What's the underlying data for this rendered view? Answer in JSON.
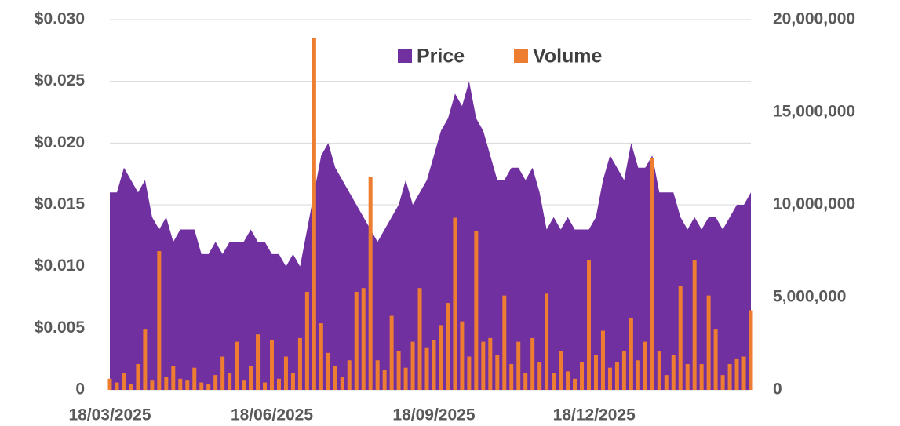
{
  "chart_data": {
    "type": "combo",
    "x": [
      "18/03/2025",
      "22/03/2025",
      "26/03/2025",
      "30/03/2025",
      "03/04/2025",
      "07/04/2025",
      "11/04/2025",
      "15/04/2025",
      "19/04/2025",
      "23/04/2025",
      "27/04/2025",
      "01/05/2025",
      "05/05/2025",
      "09/05/2025",
      "13/05/2025",
      "17/05/2025",
      "21/05/2025",
      "25/05/2025",
      "29/05/2025",
      "02/06/2025",
      "06/06/2025",
      "10/06/2025",
      "14/06/2025",
      "18/06/2025",
      "22/06/2025",
      "26/06/2025",
      "30/06/2025",
      "04/07/2025",
      "08/07/2025",
      "12/07/2025",
      "16/07/2025",
      "20/07/2025",
      "24/07/2025",
      "28/07/2025",
      "01/08/2025",
      "05/08/2025",
      "09/08/2025",
      "13/08/2025",
      "17/08/2025",
      "21/08/2025",
      "25/08/2025",
      "29/08/2025",
      "02/09/2025",
      "06/09/2025",
      "10/09/2025",
      "14/09/2025",
      "18/09/2025",
      "22/09/2025",
      "26/09/2025",
      "30/09/2025",
      "04/10/2025",
      "08/10/2025",
      "12/10/2025",
      "16/10/2025",
      "20/10/2025",
      "24/10/2025",
      "28/10/2025",
      "01/11/2025",
      "05/11/2025",
      "09/11/2025",
      "13/11/2025",
      "17/11/2025",
      "21/11/2025",
      "25/11/2025",
      "29/11/2025",
      "03/12/2025",
      "07/12/2025",
      "11/12/2025",
      "15/12/2025",
      "19/12/2025",
      "23/12/2025",
      "27/12/2025",
      "31/12/2025",
      "04/01/2026",
      "08/01/2026",
      "12/01/2026",
      "16/01/2026",
      "20/01/2026",
      "24/01/2026",
      "28/01/2026",
      "01/02/2026",
      "05/02/2026",
      "09/02/2026",
      "13/02/2026",
      "17/02/2026",
      "21/02/2026",
      "25/02/2026",
      "01/03/2026",
      "05/03/2026",
      "09/03/2026",
      "13/03/2026",
      "17/03/2026"
    ],
    "xlim": [
      "18/03/2025",
      "17/03/2026"
    ],
    "xticks": [
      "18/03/2025",
      "18/06/2025",
      "18/09/2025",
      "18/12/2025"
    ],
    "series": [
      {
        "name": "Price",
        "type": "area",
        "color": "#7030a0",
        "values": [
          0.016,
          0.016,
          0.018,
          0.017,
          0.016,
          0.017,
          0.014,
          0.013,
          0.014,
          0.012,
          0.013,
          0.013,
          0.013,
          0.011,
          0.011,
          0.012,
          0.011,
          0.012,
          0.012,
          0.012,
          0.013,
          0.012,
          0.012,
          0.011,
          0.011,
          0.01,
          0.011,
          0.01,
          0.013,
          0.016,
          0.019,
          0.02,
          0.018,
          0.017,
          0.016,
          0.015,
          0.014,
          0.013,
          0.012,
          0.013,
          0.014,
          0.015,
          0.017,
          0.015,
          0.016,
          0.017,
          0.019,
          0.021,
          0.022,
          0.024,
          0.023,
          0.025,
          0.022,
          0.021,
          0.019,
          0.017,
          0.017,
          0.018,
          0.018,
          0.017,
          0.018,
          0.016,
          0.013,
          0.014,
          0.013,
          0.014,
          0.013,
          0.013,
          0.013,
          0.014,
          0.017,
          0.019,
          0.018,
          0.017,
          0.02,
          0.018,
          0.018,
          0.019,
          0.016,
          0.016,
          0.016,
          0.014,
          0.013,
          0.014,
          0.013,
          0.014,
          0.014,
          0.013,
          0.014,
          0.015,
          0.015,
          0.016
        ]
      },
      {
        "name": "Volume",
        "type": "bar",
        "axis": "y2",
        "color": "#ed7d31",
        "values": [
          600000,
          400000,
          900000,
          300000,
          1400000,
          3300000,
          500000,
          7500000,
          700000,
          1300000,
          600000,
          500000,
          1200000,
          400000,
          300000,
          800000,
          1800000,
          900000,
          2600000,
          500000,
          1300000,
          3000000,
          400000,
          2700000,
          600000,
          1800000,
          900000,
          2800000,
          5300000,
          19000000,
          3600000,
          2000000,
          1300000,
          700000,
          1600000,
          5300000,
          5500000,
          11500000,
          1600000,
          1100000,
          4000000,
          2100000,
          1200000,
          2600000,
          5500000,
          2300000,
          2700000,
          3500000,
          4700000,
          9300000,
          3700000,
          1800000,
          8600000,
          2600000,
          2800000,
          1900000,
          5100000,
          1400000,
          2600000,
          900000,
          2800000,
          1500000,
          5200000,
          900000,
          2100000,
          1000000,
          600000,
          1500000,
          7000000,
          1900000,
          3200000,
          1200000,
          1500000,
          2100000,
          3900000,
          1600000,
          2600000,
          12500000,
          2100000,
          800000,
          1900000,
          5600000,
          1400000,
          7000000,
          1400000,
          5100000,
          3300000,
          800000,
          1400000,
          1700000,
          1800000,
          4300000
        ]
      }
    ],
    "ylim": [
      0,
      0.03
    ],
    "yticks": [
      0,
      {
        "value": 0.005,
        "label": "$0.005"
      },
      {
        "value": 0.01,
        "label": "$0.010"
      },
      {
        "value": 0.015,
        "label": "$0.015"
      },
      {
        "value": 0.02,
        "label": "$0.020"
      },
      {
        "value": 0.025,
        "label": "$0.025"
      },
      {
        "value": 0.03,
        "label": "$0.030"
      }
    ],
    "y2lim": [
      0,
      20000000
    ],
    "y2ticks": [
      0,
      {
        "value": 5000000,
        "label": "5,000,000"
      },
      {
        "value": 10000000,
        "label": "10,000,000"
      },
      {
        "value": 15000000,
        "label": "15,000,000"
      },
      {
        "value": 20000000,
        "label": "20,000,000"
      }
    ],
    "grid": true,
    "legend": "top"
  }
}
